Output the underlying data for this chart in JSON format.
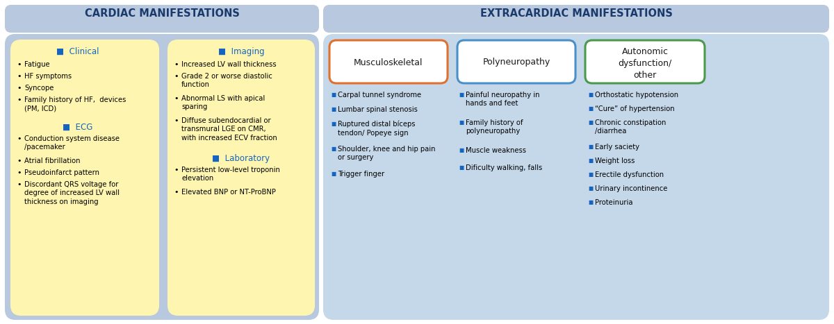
{
  "fig_width": 12.0,
  "fig_height": 4.67,
  "bg_color": "#ffffff",
  "header_band_color": "#b8c8de",
  "yellow_box_color": "#fef5b0",
  "blue_panel_color": "#c5d8ea",
  "header_text_color": "#1a3a6b",
  "subheader_color": "#1565c0",
  "bullet_color": "#1565c0",
  "cardiac_header": "CARDIAC MANIFESTATIONS",
  "extracardiac_header": "EXTRACARDIAC MANIFESTATIONS",
  "col1_title": "Clinical",
  "col1_items": [
    "Fatigue",
    "HF symptoms",
    "Syncope",
    "Family history of HF,  devices\n(PM, ICD)"
  ],
  "col1_sub_title": "ECG",
  "col1_sub_items": [
    "Conduction system disease\n/pacemaker",
    "Atrial fibrillation",
    "Pseudoinfarct pattern",
    "Discordant QRS voltage for\ndegree of increased LV wall\nthickness on imaging"
  ],
  "col2_title": "Imaging",
  "col2_items": [
    "Increased LV wall thickness",
    "Grade 2 or worse diastolic\nfunction",
    "Abnormal LS with apical\nsparing",
    "Diffuse subendocardial or\ntransmural LGE on CMR,\nwith increased ECV fraction"
  ],
  "col2_sub_title": "Laboratory",
  "col2_sub_items": [
    "Persistent low-level troponin\nelevation",
    "Elevated BNP or NT-ProBNP"
  ],
  "col3_title": "Musculoskeletal",
  "col3_border_color": "#e07030",
  "col3_items": [
    "Carpal tunnel syndrome",
    "Lumbar spinal stenosis",
    "Ruptured distal bíceps\ntendon/ Popeye sign",
    "Shoulder, knee and hip pain\nor surgery",
    "Trigger finger"
  ],
  "col4_title": "Polyneuropathy",
  "col4_border_color": "#4a90c8",
  "col4_items": [
    "Painful neuropathy in\nhands and feet",
    "Family history of\npolyneuropathy",
    "Muscle weakness",
    "Dificulty walking, falls"
  ],
  "col5_title": "Autonomic\ndysfunction/\nother",
  "col5_border_color": "#4a9a4a",
  "col5_items": [
    "Orthostatic hypotension",
    "“Cure” of hypertension",
    "Chronic constipation\n/diarrhea",
    "Early saciety",
    "Weight loss",
    "Erectile dysfunction",
    "Urinary incontinence",
    "Proteinuria"
  ]
}
